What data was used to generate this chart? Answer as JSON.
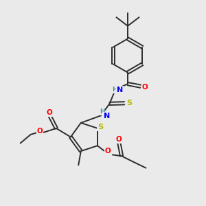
{
  "bg_color": "#eaeaea",
  "bond_color": "#2d2d2d",
  "bond_width": 1.4,
  "atom_colors": {
    "O": "#ff0000",
    "N": "#0000ff",
    "S": "#b8b800",
    "H": "#4a9090",
    "C": "#2d2d2d"
  },
  "font_size": 7.0
}
